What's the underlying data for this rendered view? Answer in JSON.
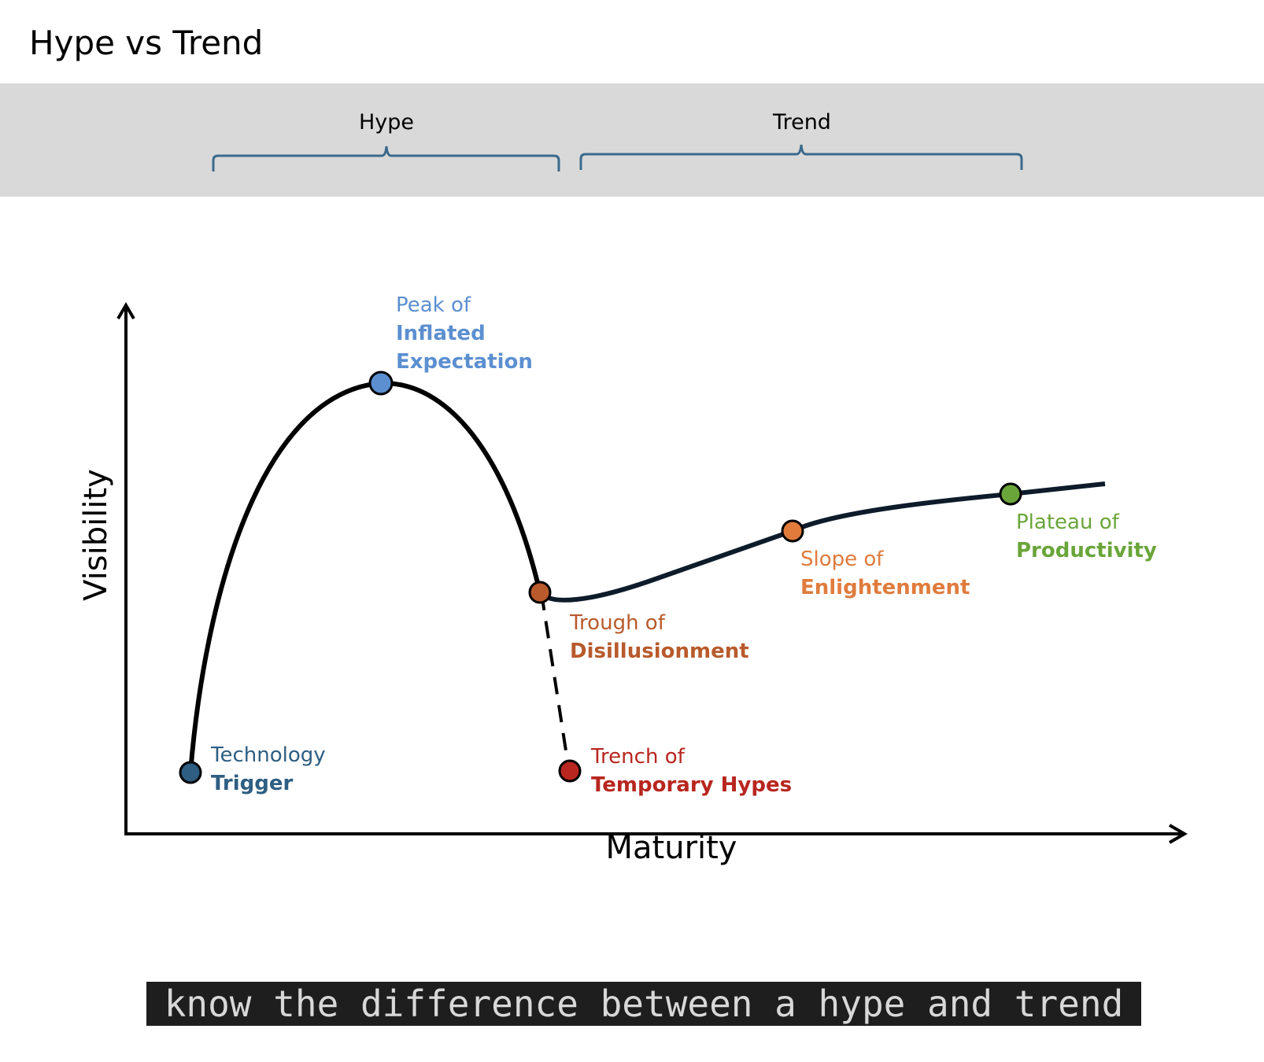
{
  "title": "Hype vs Trend",
  "groups": [
    {
      "label": "Hype"
    },
    {
      "label": "Trend"
    }
  ],
  "axes": {
    "y_label": "Visibility",
    "x_label": "Maturity"
  },
  "stages": [
    {
      "line1": "Technology",
      "line2": "Trigger",
      "color": "#2e5e82"
    },
    {
      "line1": "Peak of",
      "line2": "Inflated",
      "line3": "Expectation",
      "color": "#5b8fd0"
    },
    {
      "line1": "Trough of",
      "line2": "Disillusionment",
      "color": "#b85a2c"
    },
    {
      "line1": "Trench of",
      "line2": "Temporary Hypes",
      "color": "#b8261f"
    },
    {
      "line1": "Slope of",
      "line2": "Enlightenment",
      "color": "#e07b3c"
    },
    {
      "line1": "Plateau of",
      "line2": "Productivity",
      "color": "#6aa53a"
    }
  ],
  "colors": {
    "curve": "#0d1b2a",
    "bracket": "#3a6a8c",
    "band": "#d9d9d9"
  },
  "caption": "know the difference between a hype and trend"
}
